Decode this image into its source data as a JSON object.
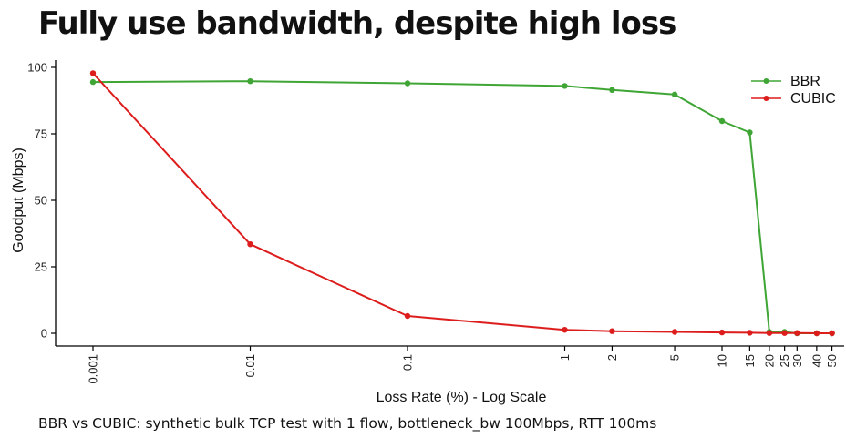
{
  "header": {
    "title": "Fully use bandwidth, despite high loss"
  },
  "footer": {
    "caption": "BBR vs CUBIC: synthetic bulk TCP test with 1 flow, bottleneck_bw 100Mbps, RTT 100ms"
  },
  "colors": {
    "bbr": "#3fa535",
    "cubic": "#dd1c1c",
    "axis": "#000000"
  },
  "chart_data": {
    "type": "line",
    "title": "",
    "xlabel": "Loss Rate (%) - Log Scale",
    "ylabel": "Goodput (Mbps)",
    "xscale": "log",
    "x": [
      0.001,
      0.01,
      0.1,
      1,
      2,
      5,
      10,
      15,
      20,
      25,
      30,
      40,
      50
    ],
    "x_tick_labels": [
      "0.001",
      "0.01",
      "0.1",
      "1",
      "2",
      "5",
      "10",
      "15",
      "20",
      "25",
      "30",
      "40",
      "50"
    ],
    "ylim": [
      0,
      100
    ],
    "y_ticks": [
      0,
      25,
      50,
      75,
      100
    ],
    "grid": false,
    "legend_position": "top-right",
    "series": [
      {
        "name": "BBR",
        "color": "#3fa535",
        "values": [
          94.5,
          94.8,
          94.0,
          93.0,
          91.5,
          89.8,
          79.8,
          75.5,
          0.5,
          0.5,
          0.0,
          0.0,
          0.0
        ]
      },
      {
        "name": "CUBIC",
        "color": "#dd1c1c",
        "values": [
          97.8,
          33.5,
          6.5,
          1.3,
          0.8,
          0.5,
          0.3,
          0.2,
          0.1,
          0.1,
          0.1,
          0.0,
          0.0
        ]
      }
    ]
  }
}
